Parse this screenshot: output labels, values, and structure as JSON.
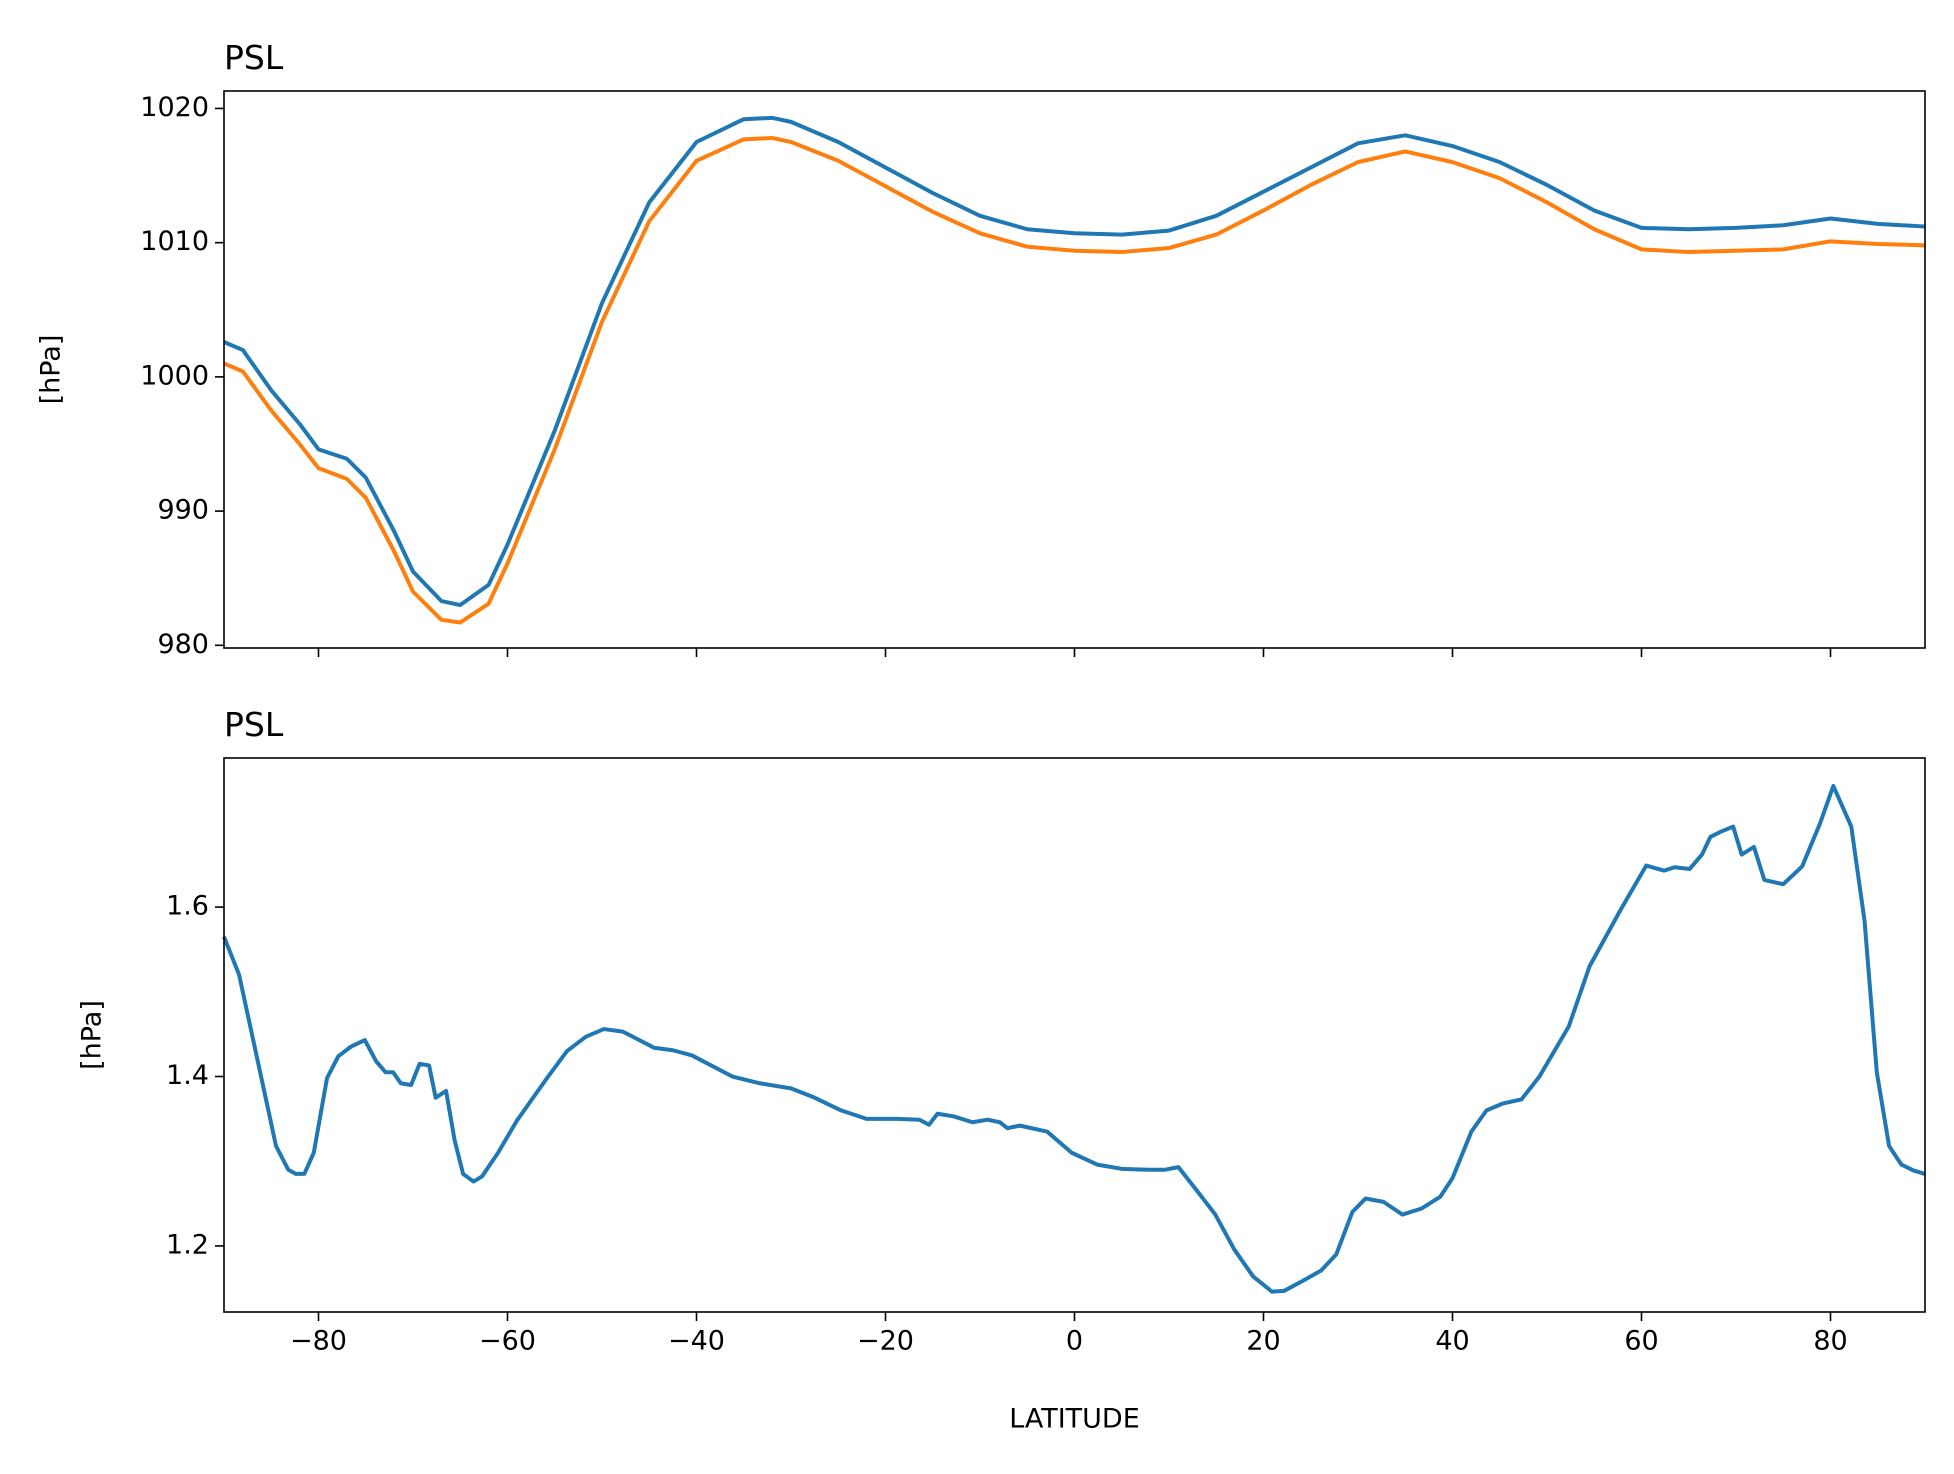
{
  "chart_data": [
    {
      "type": "line",
      "title": "PSL",
      "ylabel": "[hPa]",
      "x": [
        -90,
        -88,
        -85,
        -82,
        -80,
        -77,
        -75,
        -72,
        -70,
        -67,
        -65,
        -62,
        -60,
        -55,
        -50,
        -45,
        -40,
        -35,
        -32,
        -30,
        -25,
        -20,
        -15,
        -10,
        -5,
        0,
        5,
        10,
        15,
        20,
        25,
        30,
        35,
        40,
        45,
        50,
        55,
        60,
        65,
        70,
        75,
        80,
        85,
        90
      ],
      "series": [
        {
          "color": "#1f77b4",
          "values": [
            1002.6,
            1002.0,
            999.0,
            996.5,
            994.6,
            993.9,
            992.5,
            988.5,
            985.5,
            983.3,
            983.0,
            984.5,
            987.5,
            996.0,
            1005.5,
            1013.0,
            1017.5,
            1019.2,
            1019.3,
            1019.0,
            1017.5,
            1015.6,
            1013.7,
            1012.0,
            1011.0,
            1010.7,
            1010.6,
            1010.9,
            1012.0,
            1013.8,
            1015.6,
            1017.4,
            1018.0,
            1017.2,
            1016.0,
            1014.3,
            1012.4,
            1011.1,
            1011.0,
            1011.1,
            1011.3,
            1011.8,
            1011.4,
            1011.2
          ]
        },
        {
          "color": "#ff7f0e",
          "values": [
            1001.0,
            1000.4,
            997.5,
            995.0,
            993.2,
            992.4,
            991.0,
            987.0,
            984.0,
            981.9,
            981.7,
            983.1,
            986.1,
            994.6,
            1004.1,
            1011.6,
            1016.1,
            1017.7,
            1017.8,
            1017.5,
            1016.1,
            1014.2,
            1012.3,
            1010.7,
            1009.7,
            1009.4,
            1009.3,
            1009.6,
            1010.6,
            1012.4,
            1014.3,
            1016.0,
            1016.8,
            1016.0,
            1014.8,
            1013.0,
            1011.0,
            1009.5,
            1009.3,
            1009.4,
            1009.5,
            1010.1,
            1009.9,
            1009.8
          ]
        }
      ],
      "xlim": [
        -90,
        90
      ],
      "xticks": [
        -80,
        -60,
        -40,
        -20,
        0,
        20,
        40,
        60,
        80
      ],
      "ylim": [
        979.8,
        1021.3
      ],
      "yticks": [
        980,
        990,
        1000,
        1010,
        1020
      ]
    },
    {
      "type": "line",
      "title": "PSL",
      "ylabel": "[hPa]",
      "xlabel": "LATITUDE",
      "x": [
        -90,
        -88.4,
        -85.4,
        -84.5,
        -83.2,
        -82.4,
        -81.5,
        -80.5,
        -79.1,
        -77.9,
        -76.6,
        -75.1,
        -73.9,
        -72.9,
        -72.1,
        -71.3,
        -70.2,
        -69.3,
        -68.3,
        -67.6,
        -66.5,
        -65.6,
        -64.7,
        -63.6,
        -62.7,
        -61,
        -59,
        -55.7,
        -53.7,
        -51.7,
        -49.8,
        -47.8,
        -44.5,
        -42.5,
        -40.5,
        -36.2,
        -33.3,
        -30,
        -27.7,
        -24.7,
        -22,
        -18.7,
        -16.4,
        -15.4,
        -14.5,
        -12.8,
        -10.8,
        -9.2,
        -7.9,
        -7.1,
        -5.8,
        -2.9,
        -0.3,
        2.4,
        5,
        7.7,
        9.6,
        11,
        12.9,
        14.9,
        16.9,
        18.9,
        20.9,
        22.2,
        24.2,
        26.1,
        27.7,
        29.4,
        30.8,
        32.7,
        34.7,
        36.7,
        38.7,
        40,
        42,
        43.6,
        45.3,
        47.3,
        49.2,
        52.3,
        54.5,
        57.8,
        60.5,
        62.4,
        63.5,
        65.1,
        66.4,
        67.3,
        68.4,
        69.7,
        70.6,
        71.9,
        73,
        75,
        77,
        78.9,
        80.3,
        82.2,
        83.6,
        84.9,
        86.2,
        87.5,
        88.8,
        90
      ],
      "series": [
        {
          "color": "#1f77b4",
          "values": [
            1.565,
            1.52,
            1.365,
            1.318,
            1.29,
            1.285,
            1.285,
            1.31,
            1.398,
            1.424,
            1.435,
            1.443,
            1.418,
            1.405,
            1.405,
            1.392,
            1.39,
            1.415,
            1.413,
            1.375,
            1.383,
            1.325,
            1.285,
            1.276,
            1.282,
            1.31,
            1.348,
            1.4,
            1.43,
            1.447,
            1.456,
            1.453,
            1.434,
            1.431,
            1.425,
            1.4,
            1.392,
            1.386,
            1.376,
            1.36,
            1.35,
            1.35,
            1.349,
            1.343,
            1.356,
            1.353,
            1.346,
            1.349,
            1.346,
            1.339,
            1.342,
            1.335,
            1.31,
            1.296,
            1.291,
            1.29,
            1.29,
            1.293,
            1.266,
            1.237,
            1.196,
            1.164,
            1.146,
            1.147,
            1.159,
            1.171,
            1.19,
            1.24,
            1.256,
            1.252,
            1.237,
            1.244,
            1.258,
            1.28,
            1.335,
            1.36,
            1.368,
            1.373,
            1.4,
            1.459,
            1.53,
            1.597,
            1.649,
            1.643,
            1.647,
            1.645,
            1.662,
            1.683,
            1.689,
            1.695,
            1.662,
            1.671,
            1.632,
            1.627,
            1.648,
            1.699,
            1.743,
            1.695,
            1.584,
            1.405,
            1.318,
            1.296,
            1.289,
            1.285
          ]
        }
      ],
      "xlim": [
        -90,
        90
      ],
      "xticks": [
        {
          "value": -80,
          "label": "−80"
        },
        {
          "value": -60,
          "label": "−60"
        },
        {
          "value": -40,
          "label": "−40"
        },
        {
          "value": -20,
          "label": "−20"
        },
        0,
        20,
        40,
        60,
        80
      ],
      "ylim": [
        1.122,
        1.776
      ],
      "yticks": [
        1.2,
        1.4,
        1.6
      ]
    }
  ]
}
